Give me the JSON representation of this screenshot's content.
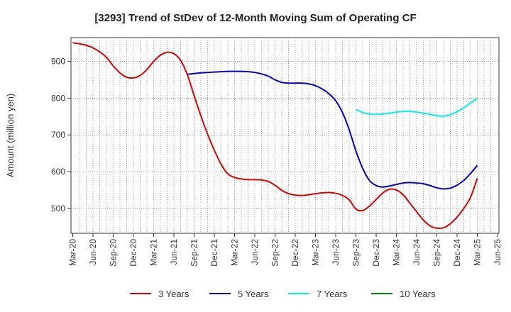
{
  "chart_data": {
    "type": "line",
    "title": "[3293]  Trend of StDev of 12-Month Moving Sum of Operating CF",
    "xlabel": "",
    "ylabel": "Amount (million yen)",
    "ylim": [
      432,
      965
    ],
    "yticks": [
      500,
      600,
      700,
      800,
      900
    ],
    "grid": true,
    "legend_position": "bottom",
    "x_tick_labels": [
      "Mar-20",
      "Jun-20",
      "Sep-20",
      "Dec-20",
      "Mar-21",
      "Jun-21",
      "Sep-21",
      "Dec-21",
      "Mar-22",
      "Jun-22",
      "Sep-22",
      "Dec-22",
      "Mar-23",
      "Jun-23",
      "Sep-23",
      "Dec-23",
      "Mar-24",
      "Jun-24",
      "Sep-24",
      "Dec-24",
      "Mar-25",
      "Jun-25"
    ],
    "x_months": [
      "Mar-20",
      "Apr-20",
      "May-20",
      "Jun-20",
      "Jul-20",
      "Aug-20",
      "Sep-20",
      "Oct-20",
      "Nov-20",
      "Dec-20",
      "Jan-21",
      "Feb-21",
      "Mar-21",
      "Apr-21",
      "May-21",
      "Jun-21",
      "Jul-21",
      "Aug-21",
      "Sep-21",
      "Oct-21",
      "Nov-21",
      "Dec-21",
      "Jan-22",
      "Feb-22",
      "Mar-22",
      "Apr-22",
      "May-22",
      "Jun-22",
      "Jul-22",
      "Aug-22",
      "Sep-22",
      "Oct-22",
      "Nov-22",
      "Dec-22",
      "Jan-23",
      "Feb-23",
      "Mar-23",
      "Apr-23",
      "May-23",
      "Jun-23",
      "Jul-23",
      "Aug-23",
      "Sep-23",
      "Oct-23",
      "Nov-23",
      "Dec-23",
      "Jan-24",
      "Feb-24",
      "Mar-24",
      "Apr-24",
      "May-24",
      "Jun-24",
      "Jul-24",
      "Aug-24",
      "Sep-24",
      "Oct-24",
      "Nov-24",
      "Dec-24",
      "Jan-25",
      "Feb-25",
      "Mar-25"
    ],
    "series": [
      {
        "name": "3 Years",
        "color": "#dd0000",
        "values": [
          951,
          948,
          944,
          937,
          926,
          911,
          888,
          869,
          857,
          855,
          862,
          878,
          900,
          917,
          925,
          921,
          903,
          864,
          807,
          752,
          702,
          658,
          620,
          594,
          584,
          580,
          578,
          578,
          577,
          573,
          563,
          549,
          540,
          536,
          535,
          537,
          540,
          542,
          543,
          541,
          535,
          523,
          498,
          494,
          506,
          524,
          542,
          552,
          550,
          537,
          514,
          491,
          468,
          452,
          446,
          447,
          458,
          476,
          500,
          530,
          582
        ]
      },
      {
        "name": "5 Years",
        "color": "#0000cc",
        "values": [
          null,
          null,
          null,
          null,
          null,
          null,
          null,
          null,
          null,
          null,
          null,
          null,
          null,
          null,
          null,
          null,
          null,
          865,
          867,
          869,
          870,
          871,
          872,
          873,
          873,
          873,
          872,
          870,
          866,
          860,
          850,
          843,
          841,
          841,
          841,
          839,
          834,
          825,
          812,
          793,
          761,
          714,
          656,
          609,
          576,
          562,
          558,
          561,
          565,
          569,
          570,
          569,
          567,
          562,
          556,
          553,
          555,
          563,
          576,
          595,
          617
        ]
      },
      {
        "name": "7 Years",
        "color": "#00eeee",
        "values": [
          null,
          null,
          null,
          null,
          null,
          null,
          null,
          null,
          null,
          null,
          null,
          null,
          null,
          null,
          null,
          null,
          null,
          null,
          null,
          null,
          null,
          null,
          null,
          null,
          null,
          null,
          null,
          null,
          null,
          null,
          null,
          null,
          null,
          null,
          null,
          null,
          null,
          null,
          null,
          null,
          null,
          null,
          769,
          761,
          757,
          756,
          757,
          759,
          762,
          764,
          764,
          762,
          759,
          756,
          752,
          751,
          755,
          763,
          774,
          787,
          799
        ]
      },
      {
        "name": "10 Years",
        "color": "#008800",
        "values": []
      }
    ]
  }
}
